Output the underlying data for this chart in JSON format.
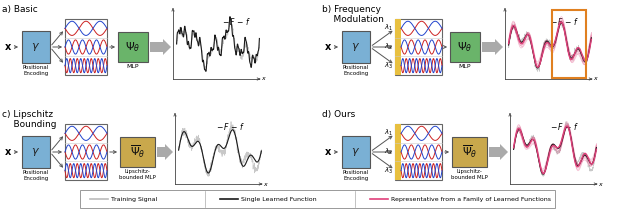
{
  "fig_width": 6.4,
  "fig_height": 2.11,
  "dpi": 100,
  "bg_color": "#ffffff",
  "gamma_box_color": "#7ab0d4",
  "mlp_box_color": "#6ab46a",
  "lipschitz_box_color": "#c9a84c",
  "yellow_stripe_color": "#e8c040",
  "orange_rect_color": "#e08020",
  "pink_color": "#e0407a",
  "dark_color": "#1a1a1a",
  "gray_color": "#bbbbbb",
  "arrow_gray": "#aaaaaa",
  "legend_items": [
    {
      "label": "Training Signal",
      "color": "#bbbbbb",
      "lw": 1.2
    },
    {
      "label": "Single Learned Function",
      "color": "#1a1a1a",
      "lw": 1.2
    },
    {
      "label": "Representative from a Family of Learned Functions",
      "color": "#e0407a",
      "lw": 1.2
    }
  ]
}
